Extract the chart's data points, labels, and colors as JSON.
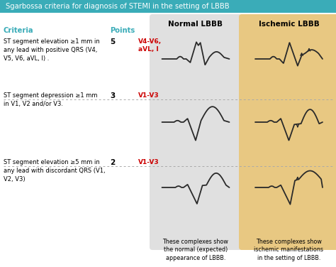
{
  "title": "Sgarbossa criteria for diagnosis of STEMI in the setting of LBBB",
  "title_bg": "#3aacb8",
  "title_color": "white",
  "bg_color": "white",
  "normal_bg": "#e0e0e0",
  "ischemic_bg": "#e8c882",
  "header_normal": "Normal LBBB",
  "header_ischemic": "Ischemic LBBB",
  "criteria_color": "#3aacb8",
  "points_color": "#3aacb8",
  "lead_color": "#cc0000",
  "criteria_label": "Criteria",
  "points_label": "Points",
  "footer_normal": "These complexes show\nthe normal (expected)\nappearance of LBBB.",
  "footer_ischemic": "These complexes show\nischemic manifestations\nin the setting of LBBB.",
  "rows": [
    {
      "criteria": "ST segment elevation ≥1 mm in\nany lead with positive QRS (V4,\nV5, V6, aVL, I) .",
      "points": "5",
      "leads": "V4-V6,\naVL, I"
    },
    {
      "criteria": "ST segment depression ≥1 mm\nin V1, V2 and/or V3.",
      "points": "3",
      "leads": "V1-V3"
    },
    {
      "criteria": "ST segment elevation ≥5 mm in\nany lead with discordant QRS (V1,\nV2, V3)",
      "points": "2",
      "leads": "V1-V3"
    }
  ],
  "ecg_color": "#2a2a2a",
  "arrow_color": "#2a2a2a"
}
